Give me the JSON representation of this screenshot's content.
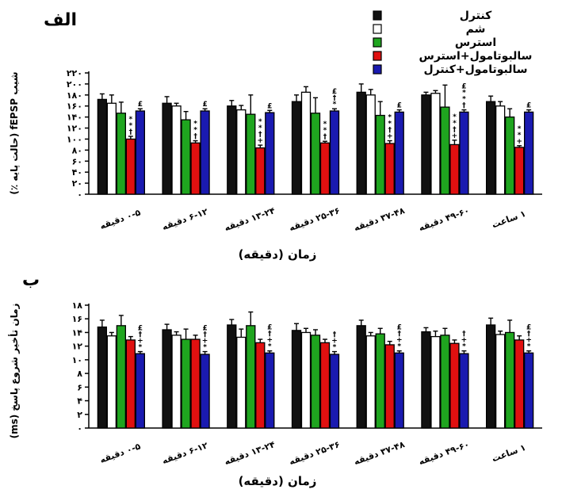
{
  "legend": [
    {
      "name": "کنترل",
      "color": "#111111",
      "hollow": false
    },
    {
      "name": "شم",
      "color": "#ffffff",
      "hollow": true
    },
    {
      "name": "استرس",
      "color": "#1fa51f",
      "hollow": false
    },
    {
      "name": "سالبوتامول+استرس",
      "color": "#e01010",
      "hollow": false
    },
    {
      "name": "سالبوتامول+کنترل",
      "color": "#1a1ab0",
      "hollow": false
    }
  ],
  "chart_data": [
    {
      "type": "bar",
      "panel_label": "الف",
      "ylabel": "شیب fEPSP (حالت پایه ٪)",
      "xlabel": "زمان (دقیقه)",
      "yticks": [
        "۰",
        "۲۰",
        "۴۰",
        "۶۰",
        "۸۰",
        "۱۰۰",
        "۱۲۰",
        "۱۴۰",
        "۱۶۰",
        "۱۸۰",
        "۲۰۰",
        "۲۲۰"
      ],
      "ylim": [
        0,
        220
      ],
      "categories": [
        "۰-۵ دقیقه",
        "۶-۱۲ دقیقه",
        "۱۳-۲۴ دقیقه",
        "۲۵-۳۶ دقیقه",
        "۳۷-۴۸ دقیقه",
        "۴۹-۶۰ دقیقه",
        "۱ ساعت"
      ],
      "series": [
        {
          "name": "کنترل",
          "values": [
            172,
            165,
            160,
            168,
            185,
            180,
            168
          ],
          "errors": [
            10,
            12,
            10,
            12,
            15,
            5,
            10
          ]
        },
        {
          "name": "شم",
          "values": [
            165,
            160,
            153,
            185,
            180,
            183,
            160
          ],
          "errors": [
            15,
            5,
            8,
            10,
            10,
            5,
            8
          ]
        },
        {
          "name": "استرس",
          "values": [
            147,
            135,
            145,
            147,
            143,
            158,
            140
          ],
          "errors": [
            20,
            15,
            35,
            28,
            25,
            40,
            15
          ]
        },
        {
          "name": "سالبوتامول+استرس",
          "values": [
            100,
            93,
            84,
            93,
            92,
            90,
            85
          ],
          "errors": [
            5,
            4,
            5,
            3,
            5,
            8,
            3
          ]
        },
        {
          "name": "سالبوتامول+کنترل",
          "values": [
            151,
            151,
            148,
            151,
            149,
            149,
            149
          ],
          "errors": [
            4,
            4,
            4,
            4,
            4,
            4,
            4
          ]
        }
      ],
      "annotations": [
        {
          "category": 0,
          "series": 3,
          "text": "**†"
        },
        {
          "category": 0,
          "series": 4,
          "text": "£"
        },
        {
          "category": 1,
          "series": 3,
          "text": "**†"
        },
        {
          "category": 1,
          "series": 4,
          "text": "£"
        },
        {
          "category": 2,
          "series": 3,
          "text": "**†+"
        },
        {
          "category": 2,
          "series": 4,
          "text": "£"
        },
        {
          "category": 3,
          "series": 3,
          "text": "**†"
        },
        {
          "category": 3,
          "series": 4,
          "text": "£†*"
        },
        {
          "category": 4,
          "series": 3,
          "text": "**†+"
        },
        {
          "category": 4,
          "series": 4,
          "text": "£"
        },
        {
          "category": 5,
          "series": 3,
          "text": "**†+"
        },
        {
          "category": 5,
          "series": 4,
          "text": "£**†"
        },
        {
          "category": 6,
          "series": 3,
          "text": "**+"
        },
        {
          "category": 6,
          "series": 4,
          "text": "£"
        }
      ]
    },
    {
      "type": "bar",
      "panel_label": "ب",
      "ylabel": "زمان تأخیر شروع پاسخ (ms)",
      "xlabel": "زمان (دقیقه)",
      "yticks": [
        "۰",
        "۲",
        "۴",
        "۶",
        "۸",
        "۱۰",
        "۱۲",
        "۱۴",
        "۱۶",
        "۱۸"
      ],
      "ylim": [
        0,
        18
      ],
      "categories": [
        "۰-۵ دقیقه",
        "۶-۱۲ دقیقه",
        "۱۳-۲۴ دقیقه",
        "۲۵-۳۶ دقیقه",
        "۳۷-۴۸ دقیقه",
        "۴۹-۶۰ دقیقه",
        "۱ ساعت"
      ],
      "series": [
        {
          "name": "کنترل",
          "values": [
            14.8,
            14.4,
            15.1,
            14.3,
            15.0,
            14.1,
            15.1
          ],
          "errors": [
            1.0,
            0.8,
            0.8,
            1.0,
            0.8,
            0.6,
            1.0
          ]
        },
        {
          "name": "شم",
          "values": [
            13.5,
            13.6,
            13.3,
            14.0,
            13.5,
            13.4,
            13.7
          ],
          "errors": [
            0.5,
            0.5,
            1.2,
            0.6,
            0.5,
            0.8,
            0.5
          ]
        },
        {
          "name": "استرس",
          "values": [
            15.0,
            13.0,
            15.0,
            13.6,
            13.8,
            13.6,
            14.0
          ],
          "errors": [
            1.5,
            1.5,
            2.0,
            0.8,
            0.8,
            1.0,
            1.8
          ]
        },
        {
          "name": "سالبوتامول+استرس",
          "values": [
            12.9,
            13.0,
            12.5,
            12.5,
            12.2,
            12.4,
            12.9
          ],
          "errors": [
            0.5,
            0.6,
            0.5,
            0.5,
            0.5,
            0.5,
            0.6
          ]
        },
        {
          "name": "سالبوتامول+کنترل",
          "values": [
            10.9,
            10.8,
            11.0,
            10.8,
            11.0,
            10.9,
            11.0
          ],
          "errors": [
            0.3,
            0.4,
            0.3,
            0.4,
            0.3,
            0.4,
            0.3
          ]
        }
      ],
      "annotations": [
        {
          "category": 0,
          "series": 4,
          "text": "£†+*"
        },
        {
          "category": 1,
          "series": 4,
          "text": "£†+*"
        },
        {
          "category": 2,
          "series": 4,
          "text": "£†+*"
        },
        {
          "category": 3,
          "series": 4,
          "text": "†+*"
        },
        {
          "category": 4,
          "series": 4,
          "text": "£†+*"
        },
        {
          "category": 5,
          "series": 4,
          "text": "†+*"
        },
        {
          "category": 6,
          "series": 4,
          "text": "£†+*"
        }
      ]
    }
  ]
}
